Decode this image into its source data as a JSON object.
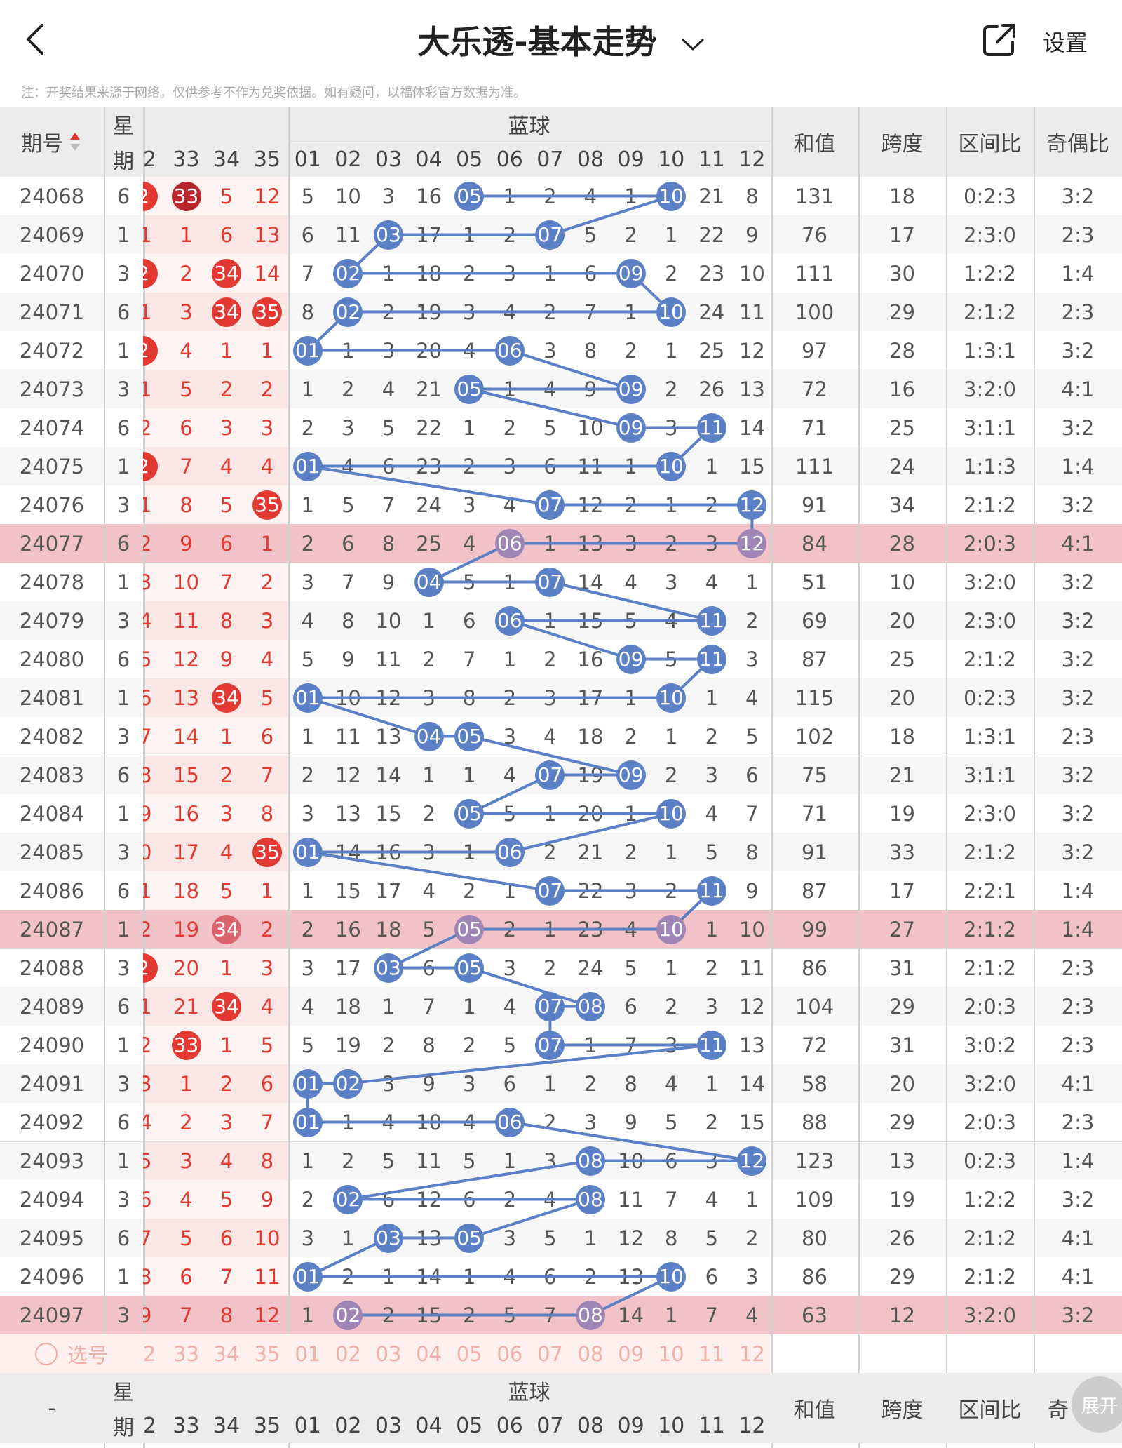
{
  "header": {
    "title": "大乐透-基本走势",
    "settings_label": "设置",
    "note": "注：开奖结果来源于网络，仅供参考不作为兑奖依据。如有疑问，以福体彩官方数据为准。"
  },
  "table": {
    "col_issue": "期号",
    "col_weekday_1": "星",
    "col_weekday_2": "期",
    "blue_title": "蓝球",
    "col_sum": "和值",
    "col_span": "跨度",
    "col_zone": "区间比",
    "col_oddeven": "奇偶比",
    "red_tail_headers": [
      "2",
      "33",
      "34",
      "35"
    ],
    "blue_headers": [
      "01",
      "02",
      "03",
      "04",
      "05",
      "06",
      "07",
      "08",
      "09",
      "10",
      "11",
      "12"
    ],
    "pick_label": "选号",
    "footer_dash": "-",
    "footer_oddeven_partial": "奇",
    "expand_label": "展开"
  },
  "colors": {
    "blue_ball": "#5b80c6",
    "red_ball": "#e23a33",
    "dark_red_ball": "#b6262b",
    "highlight_row": "#f1c2c8",
    "header_bg": "#ececec"
  },
  "rows": [
    {
      "issue": "24068",
      "wd": "6",
      "red": [
        "2",
        "33",
        "5",
        "12"
      ],
      "redBall": [
        1,
        1,
        0,
        0
      ],
      "redDark": [
        0,
        1,
        0,
        0
      ],
      "blue": [
        "5",
        "10",
        "3",
        "16",
        "05",
        "1",
        "2",
        "4",
        "1",
        "10",
        "21",
        "8"
      ],
      "hit": [
        4,
        9
      ],
      "sum": "131",
      "span": "18",
      "zone": "0:2:3",
      "oe": "3:2",
      "hl": false
    },
    {
      "issue": "24069",
      "wd": "1",
      "red": "1,1,6,13",
      "redBall": [
        0,
        0,
        0,
        0
      ],
      "blue": [
        "6",
        "11",
        "03",
        "17",
        "1",
        "2",
        "07",
        "5",
        "2",
        "1",
        "22",
        "9"
      ],
      "hit": [
        2,
        6
      ],
      "sum": "76",
      "span": "17",
      "zone": "2:3:0",
      "oe": "2:3",
      "hl": false
    },
    {
      "issue": "24070",
      "wd": "3",
      "red": [
        "2",
        "2",
        "34",
        "14"
      ],
      "redBall": [
        1,
        0,
        1,
        0
      ],
      "blue": [
        "7",
        "02",
        "1",
        "18",
        "2",
        "3",
        "1",
        "6",
        "09",
        "2",
        "23",
        "10"
      ],
      "hit": [
        1,
        8
      ],
      "sum": "111",
      "span": "30",
      "zone": "1:2:2",
      "oe": "1:4",
      "hl": false
    },
    {
      "issue": "24071",
      "wd": "6",
      "red": [
        "1",
        "3",
        "34",
        "35"
      ],
      "redBall": [
        0,
        0,
        1,
        1
      ],
      "blue": [
        "8",
        "02",
        "2",
        "19",
        "3",
        "4",
        "2",
        "7",
        "1",
        "10",
        "24",
        "11"
      ],
      "hit": [
        1,
        9
      ],
      "sum": "100",
      "span": "29",
      "zone": "2:1:2",
      "oe": "2:3",
      "hl": false
    },
    {
      "issue": "24072",
      "wd": "1",
      "red": [
        "2",
        "4",
        "1",
        "1"
      ],
      "redBall": [
        1,
        0,
        0,
        0
      ],
      "blue": [
        "01",
        "1",
        "3",
        "20",
        "4",
        "06",
        "3",
        "8",
        "2",
        "1",
        "25",
        "12"
      ],
      "hit": [
        0,
        5
      ],
      "sum": "97",
      "span": "28",
      "zone": "1:3:1",
      "oe": "3:2",
      "hl": false
    },
    {
      "issue": "24073",
      "wd": "3",
      "red": [
        "1",
        "5",
        "2",
        "2"
      ],
      "redBall": [
        0,
        0,
        0,
        0
      ],
      "blue": [
        "1",
        "2",
        "4",
        "21",
        "05",
        "1",
        "4",
        "9",
        "09",
        "2",
        "26",
        "13"
      ],
      "hit": [
        4,
        8
      ],
      "sum": "72",
      "span": "16",
      "zone": "3:2:0",
      "oe": "4:1",
      "hl": false
    },
    {
      "issue": "24074",
      "wd": "6",
      "red": [
        "2",
        "6",
        "3",
        "3"
      ],
      "redBall": [
        0,
        0,
        0,
        0
      ],
      "blue": [
        "2",
        "3",
        "5",
        "22",
        "1",
        "2",
        "5",
        "10",
        "09",
        "3",
        "11",
        "14"
      ],
      "hit": [
        8,
        10
      ],
      "sum": "71",
      "span": "25",
      "zone": "3:1:1",
      "oe": "3:2",
      "hl": false
    },
    {
      "issue": "24075",
      "wd": "1",
      "red": [
        "2",
        "7",
        "4",
        "4"
      ],
      "redBall": [
        1,
        0,
        0,
        0
      ],
      "blue": [
        "01",
        "4",
        "6",
        "23",
        "2",
        "3",
        "6",
        "11",
        "1",
        "10",
        "1",
        "15"
      ],
      "hit": [
        0,
        9
      ],
      "sum": "111",
      "span": "24",
      "zone": "1:1:3",
      "oe": "1:4",
      "hl": false
    },
    {
      "issue": "24076",
      "wd": "3",
      "red": [
        "1",
        "8",
        "5",
        "35"
      ],
      "redBall": [
        0,
        0,
        0,
        1
      ],
      "blue": [
        "1",
        "5",
        "7",
        "24",
        "3",
        "4",
        "07",
        "12",
        "2",
        "1",
        "2",
        "12"
      ],
      "hit": [
        6,
        11
      ],
      "sum": "91",
      "span": "34",
      "zone": "2:1:2",
      "oe": "3:2",
      "hl": false
    },
    {
      "issue": "24077",
      "wd": "6",
      "red": [
        "2",
        "9",
        "6",
        "1"
      ],
      "redBall": [
        0,
        0,
        0,
        0
      ],
      "blue": [
        "2",
        "6",
        "8",
        "25",
        "4",
        "06",
        "1",
        "13",
        "3",
        "2",
        "3",
        "12"
      ],
      "hit": [
        5,
        11
      ],
      "sum": "84",
      "span": "28",
      "zone": "2:0:3",
      "oe": "4:1",
      "hl": true
    },
    {
      "issue": "24078",
      "wd": "1",
      "red": [
        "3",
        "10",
        "7",
        "2"
      ],
      "redBall": [
        0,
        0,
        0,
        0
      ],
      "blue": [
        "3",
        "7",
        "9",
        "04",
        "5",
        "1",
        "07",
        "14",
        "4",
        "3",
        "4",
        "1"
      ],
      "hit": [
        3,
        6
      ],
      "sum": "51",
      "span": "10",
      "zone": "3:2:0",
      "oe": "3:2",
      "hl": false
    },
    {
      "issue": "24079",
      "wd": "3",
      "red": [
        "4",
        "11",
        "8",
        "3"
      ],
      "redBall": [
        0,
        0,
        0,
        0
      ],
      "blue": [
        "4",
        "8",
        "10",
        "1",
        "6",
        "06",
        "1",
        "15",
        "5",
        "4",
        "11",
        "2"
      ],
      "hit": [
        5,
        10
      ],
      "sum": "69",
      "span": "20",
      "zone": "2:3:0",
      "oe": "3:2",
      "hl": false
    },
    {
      "issue": "24080",
      "wd": "6",
      "red": [
        "5",
        "12",
        "9",
        "4"
      ],
      "redBall": [
        0,
        0,
        0,
        0
      ],
      "blue": [
        "5",
        "9",
        "11",
        "2",
        "7",
        "1",
        "2",
        "16",
        "09",
        "5",
        "11",
        "3"
      ],
      "hit": [
        8,
        10
      ],
      "sum": "87",
      "span": "25",
      "zone": "2:1:2",
      "oe": "3:2",
      "hl": false
    },
    {
      "issue": "24081",
      "wd": "1",
      "red": [
        "6",
        "13",
        "34",
        "5"
      ],
      "redBall": [
        0,
        0,
        1,
        0
      ],
      "blue": [
        "01",
        "10",
        "12",
        "3",
        "8",
        "2",
        "3",
        "17",
        "1",
        "10",
        "1",
        "4"
      ],
      "hit": [
        0,
        9
      ],
      "sum": "115",
      "span": "20",
      "zone": "0:2:3",
      "oe": "3:2",
      "hl": false
    },
    {
      "issue": "24082",
      "wd": "3",
      "red": [
        "7",
        "14",
        "1",
        "6"
      ],
      "redBall": [
        0,
        0,
        0,
        0
      ],
      "blue": [
        "1",
        "11",
        "13",
        "04",
        "05",
        "3",
        "4",
        "18",
        "2",
        "1",
        "2",
        "5"
      ],
      "hit": [
        3,
        4
      ],
      "sum": "102",
      "span": "18",
      "zone": "1:3:1",
      "oe": "2:3",
      "hl": false
    },
    {
      "issue": "24083",
      "wd": "6",
      "red": [
        "8",
        "15",
        "2",
        "7"
      ],
      "redBall": [
        0,
        0,
        0,
        0
      ],
      "blue": [
        "2",
        "12",
        "14",
        "1",
        "1",
        "4",
        "07",
        "19",
        "09",
        "2",
        "3",
        "6"
      ],
      "hit": [
        6,
        8
      ],
      "sum": "75",
      "span": "21",
      "zone": "3:1:1",
      "oe": "3:2",
      "hl": false
    },
    {
      "issue": "24084",
      "wd": "1",
      "red": [
        "9",
        "16",
        "3",
        "8"
      ],
      "redBall": [
        0,
        0,
        0,
        0
      ],
      "blue": [
        "3",
        "13",
        "15",
        "2",
        "05",
        "5",
        "1",
        "20",
        "1",
        "10",
        "4",
        "7"
      ],
      "hit": [
        4,
        9
      ],
      "sum": "71",
      "span": "19",
      "zone": "2:3:0",
      "oe": "3:2",
      "hl": false
    },
    {
      "issue": "24085",
      "wd": "3",
      "red": [
        "0",
        "17",
        "4",
        "35"
      ],
      "redBall": [
        0,
        0,
        0,
        1
      ],
      "blue": [
        "01",
        "14",
        "16",
        "3",
        "1",
        "06",
        "2",
        "21",
        "2",
        "1",
        "5",
        "8"
      ],
      "hit": [
        0,
        5
      ],
      "sum": "91",
      "span": "33",
      "zone": "2:1:2",
      "oe": "3:2",
      "hl": false
    },
    {
      "issue": "24086",
      "wd": "6",
      "red": [
        "1",
        "18",
        "5",
        "1"
      ],
      "redBall": [
        0,
        0,
        0,
        0
      ],
      "blue": [
        "1",
        "15",
        "17",
        "4",
        "2",
        "1",
        "07",
        "22",
        "3",
        "2",
        "11",
        "9"
      ],
      "hit": [
        6,
        10
      ],
      "sum": "87",
      "span": "17",
      "zone": "2:2:1",
      "oe": "1:4",
      "hl": false
    },
    {
      "issue": "24087",
      "wd": "1",
      "red": [
        "2",
        "19",
        "34",
        "2"
      ],
      "redBall": [
        0,
        0,
        1,
        0
      ],
      "blue": [
        "2",
        "16",
        "18",
        "5",
        "05",
        "2",
        "1",
        "23",
        "4",
        "10",
        "1",
        "10"
      ],
      "hit": [
        4,
        9
      ],
      "sum": "99",
      "span": "27",
      "zone": "2:1:2",
      "oe": "1:4",
      "hl": true
    },
    {
      "issue": "24088",
      "wd": "3",
      "red": [
        "2",
        "20",
        "1",
        "3"
      ],
      "redBall": [
        1,
        0,
        0,
        0
      ],
      "blue": [
        "3",
        "17",
        "03",
        "6",
        "05",
        "3",
        "2",
        "24",
        "5",
        "1",
        "2",
        "11"
      ],
      "hit": [
        2,
        4
      ],
      "sum": "86",
      "span": "31",
      "zone": "2:1:2",
      "oe": "2:3",
      "hl": false
    },
    {
      "issue": "24089",
      "wd": "6",
      "red": [
        "1",
        "21",
        "34",
        "4"
      ],
      "redBall": [
        0,
        0,
        1,
        0
      ],
      "blue": [
        "4",
        "18",
        "1",
        "7",
        "1",
        "4",
        "07",
        "08",
        "6",
        "2",
        "3",
        "12"
      ],
      "hit": [
        6,
        7
      ],
      "sum": "104",
      "span": "29",
      "zone": "2:0:3",
      "oe": "2:3",
      "hl": false
    },
    {
      "issue": "24090",
      "wd": "1",
      "red": [
        "2",
        "33",
        "1",
        "5"
      ],
      "redBall": [
        0,
        1,
        0,
        0
      ],
      "blue": [
        "5",
        "19",
        "2",
        "8",
        "2",
        "5",
        "07",
        "1",
        "7",
        "3",
        "11",
        "13"
      ],
      "hit": [
        6,
        10
      ],
      "sum": "72",
      "span": "31",
      "zone": "3:0:2",
      "oe": "2:3",
      "hl": false
    },
    {
      "issue": "24091",
      "wd": "3",
      "red": [
        "3",
        "1",
        "2",
        "6"
      ],
      "redBall": [
        0,
        0,
        0,
        0
      ],
      "blue": [
        "01",
        "02",
        "3",
        "9",
        "3",
        "6",
        "1",
        "2",
        "8",
        "4",
        "1",
        "14"
      ],
      "hit": [
        0,
        1
      ],
      "sum": "58",
      "span": "20",
      "zone": "3:2:0",
      "oe": "4:1",
      "hl": false
    },
    {
      "issue": "24092",
      "wd": "6",
      "red": [
        "4",
        "2",
        "3",
        "7"
      ],
      "redBall": [
        0,
        0,
        0,
        0
      ],
      "blue": [
        "01",
        "1",
        "4",
        "10",
        "4",
        "06",
        "2",
        "3",
        "9",
        "5",
        "2",
        "15"
      ],
      "hit": [
        0,
        5
      ],
      "sum": "88",
      "span": "29",
      "zone": "2:0:3",
      "oe": "2:3",
      "hl": false
    },
    {
      "issue": "24093",
      "wd": "1",
      "red": [
        "5",
        "3",
        "4",
        "8"
      ],
      "redBall": [
        0,
        0,
        0,
        0
      ],
      "blue": [
        "1",
        "2",
        "5",
        "11",
        "5",
        "1",
        "3",
        "08",
        "10",
        "6",
        "3",
        "12"
      ],
      "hit": [
        7,
        11
      ],
      "sum": "123",
      "span": "13",
      "zone": "0:2:3",
      "oe": "1:4",
      "hl": false
    },
    {
      "issue": "24094",
      "wd": "3",
      "red": [
        "6",
        "4",
        "5",
        "9"
      ],
      "redBall": [
        0,
        0,
        0,
        0
      ],
      "blue": [
        "2",
        "02",
        "6",
        "12",
        "6",
        "2",
        "4",
        "08",
        "11",
        "7",
        "4",
        "1"
      ],
      "hit": [
        1,
        7
      ],
      "sum": "109",
      "span": "19",
      "zone": "1:2:2",
      "oe": "3:2",
      "hl": false
    },
    {
      "issue": "24095",
      "wd": "6",
      "red": [
        "7",
        "5",
        "6",
        "10"
      ],
      "redBall": [
        0,
        0,
        0,
        0
      ],
      "blue": [
        "3",
        "1",
        "03",
        "13",
        "05",
        "3",
        "5",
        "1",
        "12",
        "8",
        "5",
        "2"
      ],
      "hit": [
        2,
        4
      ],
      "sum": "80",
      "span": "26",
      "zone": "2:1:2",
      "oe": "4:1",
      "hl": false
    },
    {
      "issue": "24096",
      "wd": "1",
      "red": [
        "8",
        "6",
        "7",
        "11"
      ],
      "redBall": [
        0,
        0,
        0,
        0
      ],
      "blue": [
        "01",
        "2",
        "1",
        "14",
        "1",
        "4",
        "6",
        "2",
        "13",
        "10",
        "6",
        "3"
      ],
      "hit": [
        0,
        9
      ],
      "sum": "86",
      "span": "29",
      "zone": "2:1:2",
      "oe": "4:1",
      "hl": false
    },
    {
      "issue": "24097",
      "wd": "3",
      "red": [
        "9",
        "7",
        "8",
        "12"
      ],
      "redBall": [
        0,
        0,
        0,
        0
      ],
      "blue": [
        "1",
        "02",
        "2",
        "15",
        "2",
        "5",
        "7",
        "08",
        "14",
        "1",
        "7",
        "4"
      ],
      "hit": [
        1,
        7
      ],
      "sum": "63",
      "span": "12",
      "zone": "3:2:0",
      "oe": "3:2",
      "hl": true
    }
  ]
}
